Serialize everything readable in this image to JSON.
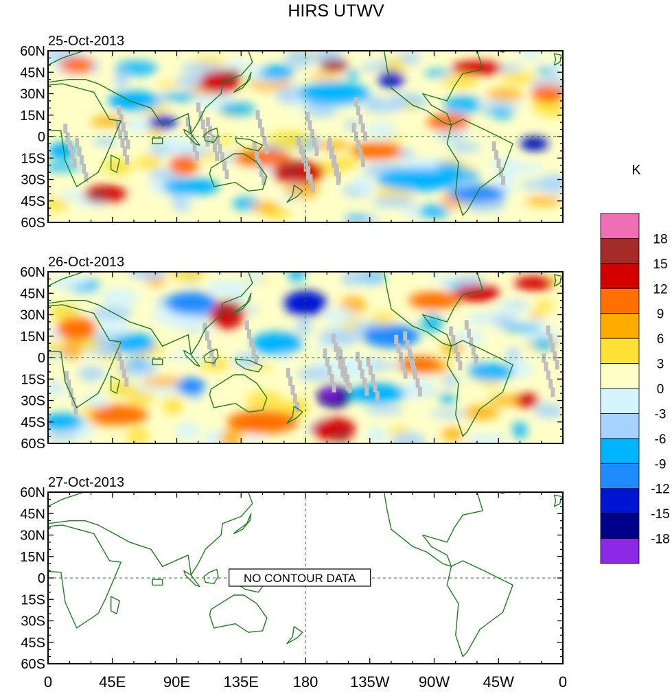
{
  "chart_data": {
    "type": "heatmap",
    "title": "HIRS UTWV",
    "unit_label": "K",
    "x_ticks": [
      "0",
      "45E",
      "90E",
      "135E",
      "180",
      "135W",
      "90W",
      "45W",
      "0"
    ],
    "y_ticks": [
      "60N",
      "45N",
      "30N",
      "15N",
      "0",
      "15S",
      "30S",
      "45S",
      "60S"
    ],
    "lon_range": [
      0,
      360
    ],
    "lat_range": [
      -60,
      60
    ],
    "colorbar": {
      "levels": [
        "18",
        "15",
        "12",
        "9",
        "6",
        "3",
        "0",
        "-3",
        "-6",
        "-9",
        "-12",
        "-15",
        "-18"
      ],
      "colors": [
        "#f06eb4",
        "#a52a2a",
        "#d40000",
        "#ff7000",
        "#ffab00",
        "#ffe135",
        "#ffffc8",
        "#d4f4ff",
        "#a5d2ff",
        "#00b4ff",
        "#1e8cff",
        "#0014d4",
        "#00008c",
        "#8c28e6"
      ]
    },
    "panels": [
      {
        "date": "25-Oct-2013",
        "has_data": true
      },
      {
        "date": "26-Oct-2013",
        "has_data": true
      },
      {
        "date": "27-Oct-2013",
        "has_data": false,
        "message": "NO CONTOUR DATA"
      }
    ]
  }
}
